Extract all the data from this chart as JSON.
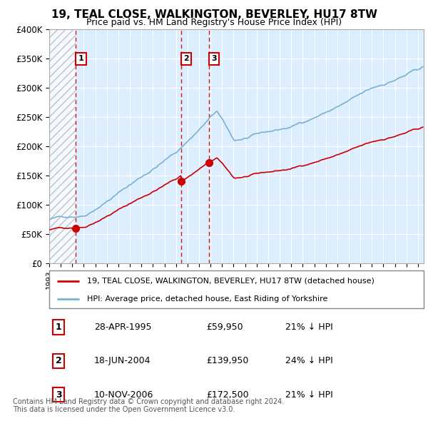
{
  "title": "19, TEAL CLOSE, WALKINGTON, BEVERLEY, HU17 8TW",
  "subtitle": "Price paid vs. HM Land Registry's House Price Index (HPI)",
  "ylim": [
    0,
    400000
  ],
  "yticks": [
    0,
    50000,
    100000,
    150000,
    200000,
    250000,
    300000,
    350000,
    400000
  ],
  "ytick_labels": [
    "£0",
    "£50K",
    "£100K",
    "£150K",
    "£200K",
    "£250K",
    "£300K",
    "£350K",
    "£400K"
  ],
  "sales": [
    {
      "date_num": 1995.32,
      "price": 59950,
      "label": "1"
    },
    {
      "date_num": 2004.46,
      "price": 139950,
      "label": "2"
    },
    {
      "date_num": 2006.86,
      "price": 172500,
      "label": "3"
    }
  ],
  "vline_color": "#cc0000",
  "sale_color": "#cc0000",
  "hpi_color": "#7ab0d4",
  "chart_bg": "#ddeeff",
  "legend_label_sale": "19, TEAL CLOSE, WALKINGTON, BEVERLEY, HU17 8TW (detached house)",
  "legend_label_hpi": "HPI: Average price, detached house, East Riding of Yorkshire",
  "table_rows": [
    {
      "num": "1",
      "date": "28-APR-1995",
      "price": "£59,950",
      "pct": "21% ↓ HPI"
    },
    {
      "num": "2",
      "date": "18-JUN-2004",
      "price": "£139,950",
      "pct": "24% ↓ HPI"
    },
    {
      "num": "3",
      "date": "10-NOV-2006",
      "price": "£172,500",
      "pct": "21% ↓ HPI"
    }
  ],
  "footer": "Contains HM Land Registry data © Crown copyright and database right 2024.\nThis data is licensed under the Open Government Licence v3.0.",
  "hatch_region_end": 1995.32,
  "xlim_start": 1993.0,
  "xlim_end": 2025.5
}
